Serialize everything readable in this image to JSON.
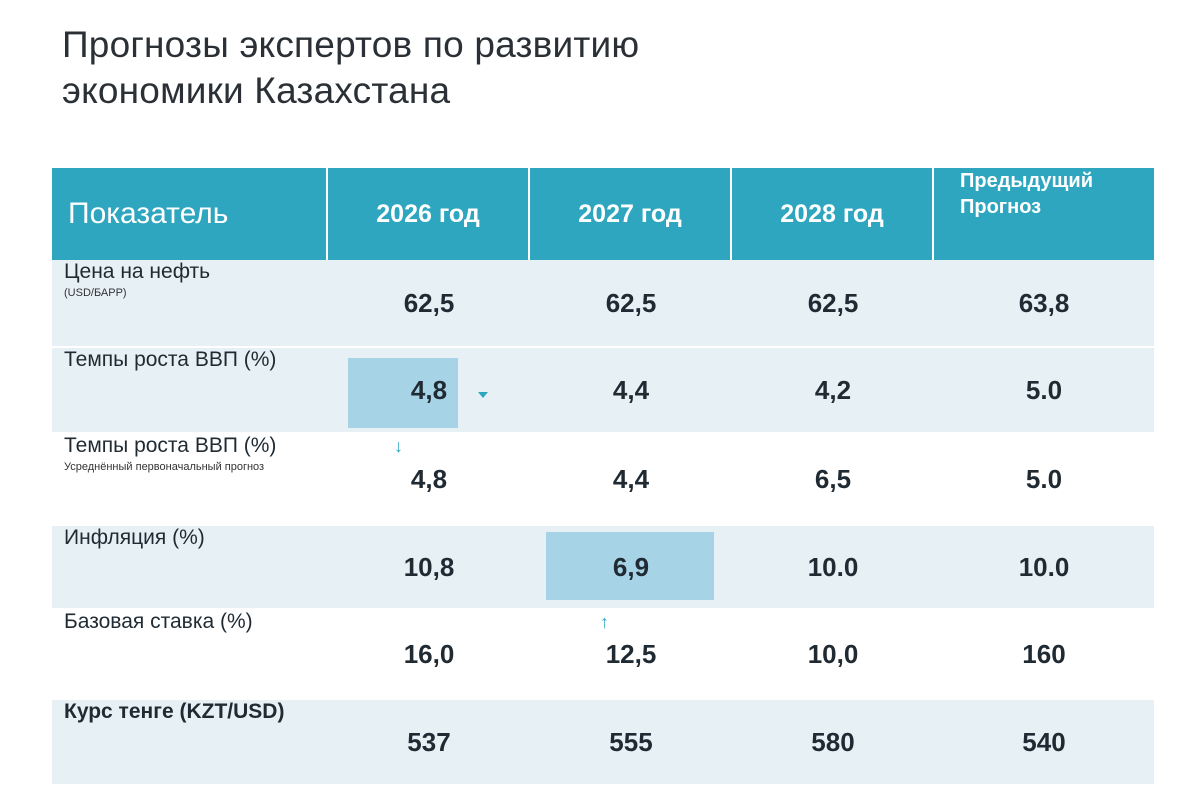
{
  "title": {
    "line1": "Прогнозы экспертов по развитию",
    "line2": "экономики Казахстана"
  },
  "table": {
    "headers": [
      "Показатель",
      "2026 год",
      "2027 год",
      "2028 год"
    ],
    "header_prev_line1": "Предыдущий",
    "header_prev_line2": "Прогноз",
    "rows": [
      {
        "label": "Цена на нефть",
        "sub": "(USD/БАРР)",
        "values": [
          "62,5",
          "62,5",
          "62,5",
          "63,8"
        ]
      },
      {
        "label": "Темпы роста ВВП (%)",
        "sub": "",
        "values": [
          "4,8",
          "4,4",
          "4,2",
          "5.0"
        ]
      },
      {
        "label": "Темпы роста ВВП (%)",
        "sub": "Усреднённый первоначальный прогноз",
        "values": [
          "4,8",
          "4,4",
          "6,5",
          "5.0"
        ]
      },
      {
        "label": "Инфляция (%)",
        "sub": "",
        "values": [
          "10,8",
          "6,9",
          "10.0",
          "10.0"
        ]
      },
      {
        "label": "Базовая ставка (%)",
        "sub": "",
        "values": [
          "16,0",
          "12,5",
          "10,0",
          "160"
        ]
      },
      {
        "label": "Курс тенге (KZT/USD)",
        "sub": "",
        "values": [
          "537",
          "555",
          "580",
          "540"
        ]
      }
    ]
  },
  "colors": {
    "header_bg": "#2ea6bf",
    "row_shade": "#e6f0f5",
    "highlight": "#a6d4e6",
    "arrow": "#2ea6bf"
  },
  "icons": [
    "arrow-down-icon",
    "arrow-up-icon",
    "caret-down-icon"
  ]
}
